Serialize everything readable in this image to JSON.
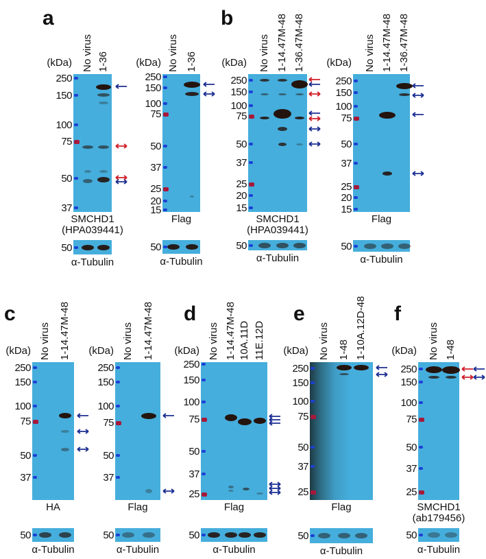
{
  "colors": {
    "blot": "#45aedc",
    "band": "#24140e",
    "marker_blue": "#1c3fd6",
    "marker_red": "#a8183a",
    "arrow_blue": "#1d2f92",
    "arrow_red": "#d0202a"
  },
  "kda_label": "(kDa)",
  "tubulin_marker": "50",
  "tubulin_label": "α-Tubulin",
  "panels": [
    {
      "letter": "a"
    },
    {
      "letter": "b"
    },
    {
      "letter": "c"
    },
    {
      "letter": "d"
    },
    {
      "letter": "e"
    },
    {
      "letter": "f"
    }
  ],
  "blots": [
    {
      "panel": "a",
      "lanes": [
        "No virus",
        "1-36"
      ],
      "markers": [
        "250",
        "150",
        "100",
        "75",
        "50",
        "37"
      ],
      "red_markers": [
        "75"
      ],
      "antibody": [
        "SMCHD1",
        "(HPA039441)"
      ]
    },
    {
      "panel": "a",
      "lanes": [
        "No virus",
        "1-36"
      ],
      "markers": [
        "250",
        "150",
        "100",
        "75",
        "50",
        "37",
        "25",
        "20",
        "15"
      ],
      "red_markers": [
        "75",
        "25"
      ],
      "antibody": [
        "Flag"
      ]
    },
    {
      "panel": "b",
      "lanes": [
        "No virus",
        "1-14.47M-48",
        "1-36.47M-48"
      ],
      "markers": [
        "250",
        "150",
        "100",
        "75",
        "50",
        "37",
        "25",
        "20",
        "15"
      ],
      "red_markers": [
        "75",
        "25"
      ],
      "antibody": [
        "SMCHD1",
        "(HPA039441)"
      ]
    },
    {
      "panel": "b",
      "lanes": [
        "No virus",
        "1-14.47M-48",
        "1-36.47M-48"
      ],
      "markers": [
        "250",
        "150",
        "100",
        "75",
        "50",
        "37",
        "25",
        "20",
        "15"
      ],
      "red_markers": [
        "75",
        "25"
      ],
      "antibody": [
        "Flag"
      ]
    },
    {
      "panel": "c",
      "lanes": [
        "No virus",
        "1-14.47M-48"
      ],
      "markers": [
        "250",
        "150",
        "100",
        "75",
        "50",
        "37"
      ],
      "red_markers": [
        "75"
      ],
      "antibody": [
        "HA"
      ]
    },
    {
      "panel": "c",
      "lanes": [
        "No virus",
        "1-14.47M-48"
      ],
      "markers": [
        "250",
        "150",
        "100",
        "75",
        "50",
        "37"
      ],
      "red_markers": [
        "75"
      ],
      "antibody": [
        "Flag"
      ]
    },
    {
      "panel": "d",
      "lanes": [
        "No virus",
        "1-14.47M-48",
        "10A.11D",
        "11E.12D"
      ],
      "markers": [
        "250",
        "150",
        "100",
        "75",
        "50",
        "37",
        "25"
      ],
      "red_markers": [
        "75",
        "25"
      ],
      "antibody": [
        "Flag"
      ]
    },
    {
      "panel": "e",
      "lanes": [
        "No virus",
        "1-48",
        "1-10A.12D-48"
      ],
      "markers": [
        "250",
        "150",
        "100",
        "75",
        "50",
        "37",
        "25"
      ],
      "red_markers": [
        "75",
        "25"
      ],
      "antibody": [
        "Flag"
      ]
    },
    {
      "panel": "f",
      "lanes": [
        "No virus",
        "1-48"
      ],
      "markers": [
        "250",
        "150",
        "100",
        "75",
        "50",
        "37",
        "25"
      ],
      "red_markers": [
        "75",
        "25"
      ],
      "antibody": [
        "SMCHD1",
        "(ab179456)"
      ]
    }
  ]
}
